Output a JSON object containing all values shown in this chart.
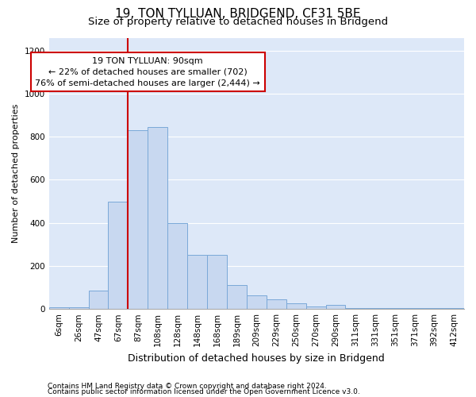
{
  "title1": "19, TON TYLLUAN, BRIDGEND, CF31 5BE",
  "title2": "Size of property relative to detached houses in Bridgend",
  "xlabel": "Distribution of detached houses by size in Bridgend",
  "ylabel": "Number of detached properties",
  "categories": [
    "6sqm",
    "26sqm",
    "47sqm",
    "67sqm",
    "87sqm",
    "108sqm",
    "128sqm",
    "148sqm",
    "168sqm",
    "189sqm",
    "209sqm",
    "229sqm",
    "250sqm",
    "270sqm",
    "290sqm",
    "311sqm",
    "331sqm",
    "351sqm",
    "371sqm",
    "392sqm",
    "412sqm"
  ],
  "values": [
    8,
    8,
    85,
    500,
    830,
    845,
    400,
    250,
    250,
    110,
    65,
    45,
    25,
    12,
    18,
    5,
    5,
    5,
    5,
    3,
    5
  ],
  "bar_color": "#c8d8f0",
  "bar_edge_color": "#7aa8d8",
  "vline_color": "#cc0000",
  "annotation_text": "19 TON TYLLUAN: 90sqm\n← 22% of detached houses are smaller (702)\n76% of semi-detached houses are larger (2,444) →",
  "ylim": [
    0,
    1260
  ],
  "yticks": [
    0,
    200,
    400,
    600,
    800,
    1000,
    1200
  ],
  "plot_background_color": "#dde8f8",
  "grid_color": "#ffffff",
  "footer1": "Contains HM Land Registry data © Crown copyright and database right 2024.",
  "footer2": "Contains public sector information licensed under the Open Government Licence v3.0.",
  "title1_fontsize": 11,
  "title2_fontsize": 9.5,
  "xlabel_fontsize": 9,
  "ylabel_fontsize": 8,
  "tick_fontsize": 7.5,
  "annotation_fontsize": 8,
  "footer_fontsize": 6.5
}
